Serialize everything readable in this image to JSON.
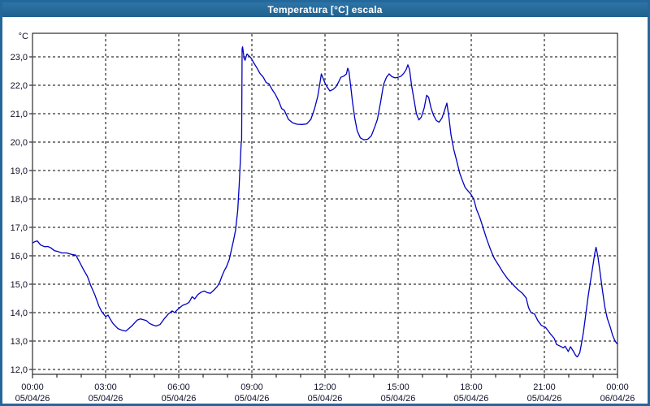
{
  "window": {
    "title": "Temperatura [°C] escala"
  },
  "colors": {
    "titlebar": "#24689b",
    "window_border": "#24689b",
    "curve": "#0000bf",
    "grid": "#000000",
    "axis": "#000000",
    "label_text": "#10102a",
    "plot_background": "#ffffff"
  },
  "chart_data": {
    "type": "line",
    "title": "Temperatura [°C] escala",
    "unit_label": "°C",
    "grid": "dashed",
    "legend_position": "none",
    "x_axis": {
      "hours_span": 24,
      "tick_step_hours": 3,
      "minor_tick_step_hours": 1,
      "ticks": [
        {
          "hour": 0,
          "time": "00:00",
          "date": "05/04/26"
        },
        {
          "hour": 3,
          "time": "03:00",
          "date": "05/04/26"
        },
        {
          "hour": 6,
          "time": "06:00",
          "date": "05/04/26"
        },
        {
          "hour": 9,
          "time": "09:00",
          "date": "05/04/26"
        },
        {
          "hour": 12,
          "time": "12:00",
          "date": "05/04/26"
        },
        {
          "hour": 15,
          "time": "15:00",
          "date": "05/04/26"
        },
        {
          "hour": 18,
          "time": "18:00",
          "date": "05/04/26"
        },
        {
          "hour": 21,
          "time": "21:00",
          "date": "05/04/26"
        },
        {
          "hour": 24,
          "time": "00:00",
          "date": "06/04/26"
        }
      ]
    },
    "y_axis": {
      "ylim": [
        11.8,
        23.8
      ],
      "gridline_step": 1.0,
      "ticks": [
        {
          "value": 23,
          "label": "23,0"
        },
        {
          "value": 22,
          "label": "22,0"
        },
        {
          "value": 21,
          "label": "21,0"
        },
        {
          "value": 20,
          "label": "20,0"
        },
        {
          "value": 19,
          "label": "19,0"
        },
        {
          "value": 18,
          "label": "18,0"
        },
        {
          "value": 17,
          "label": "17,0"
        },
        {
          "value": 16,
          "label": "16,0"
        },
        {
          "value": 15,
          "label": "15,0"
        },
        {
          "value": 14,
          "label": "14,0"
        },
        {
          "value": 13,
          "label": "13,0"
        },
        {
          "value": 12,
          "label": "12,0"
        }
      ]
    },
    "series": [
      {
        "name": "Temperatura",
        "color": "#0000bf",
        "points": [
          [
            0.0,
            16.45
          ],
          [
            0.1,
            16.5
          ],
          [
            0.2,
            16.52
          ],
          [
            0.33,
            16.38
          ],
          [
            0.5,
            16.32
          ],
          [
            0.63,
            16.33
          ],
          [
            0.75,
            16.28
          ],
          [
            0.9,
            16.18
          ],
          [
            1.05,
            16.15
          ],
          [
            1.2,
            16.1
          ],
          [
            1.4,
            16.1
          ],
          [
            1.6,
            16.05
          ],
          [
            1.78,
            16.02
          ],
          [
            1.95,
            15.75
          ],
          [
            2.1,
            15.5
          ],
          [
            2.25,
            15.28
          ],
          [
            2.4,
            14.93
          ],
          [
            2.56,
            14.62
          ],
          [
            2.72,
            14.24
          ],
          [
            2.83,
            14.05
          ],
          [
            3.0,
            13.86
          ],
          [
            3.1,
            13.91
          ],
          [
            3.17,
            13.8
          ],
          [
            3.3,
            13.62
          ],
          [
            3.5,
            13.44
          ],
          [
            3.67,
            13.38
          ],
          [
            3.83,
            13.35
          ],
          [
            3.95,
            13.44
          ],
          [
            4.07,
            13.53
          ],
          [
            4.2,
            13.65
          ],
          [
            4.3,
            13.74
          ],
          [
            4.43,
            13.78
          ],
          [
            4.55,
            13.75
          ],
          [
            4.67,
            13.72
          ],
          [
            4.8,
            13.62
          ],
          [
            4.95,
            13.56
          ],
          [
            5.07,
            13.53
          ],
          [
            5.23,
            13.58
          ],
          [
            5.4,
            13.78
          ],
          [
            5.57,
            13.95
          ],
          [
            5.73,
            14.06
          ],
          [
            5.83,
            14.0
          ],
          [
            6.0,
            14.15
          ],
          [
            6.17,
            14.26
          ],
          [
            6.3,
            14.3
          ],
          [
            6.42,
            14.36
          ],
          [
            6.55,
            14.56
          ],
          [
            6.65,
            14.48
          ],
          [
            6.78,
            14.63
          ],
          [
            6.92,
            14.72
          ],
          [
            7.05,
            14.76
          ],
          [
            7.18,
            14.7
          ],
          [
            7.3,
            14.68
          ],
          [
            7.45,
            14.8
          ],
          [
            7.58,
            14.92
          ],
          [
            7.68,
            15.07
          ],
          [
            7.78,
            15.3
          ],
          [
            7.87,
            15.48
          ],
          [
            7.95,
            15.6
          ],
          [
            8.07,
            15.86
          ],
          [
            8.17,
            16.25
          ],
          [
            8.25,
            16.55
          ],
          [
            8.33,
            16.9
          ],
          [
            8.42,
            17.6
          ],
          [
            8.48,
            18.5
          ],
          [
            8.53,
            19.4
          ],
          [
            8.56,
            19.95
          ],
          [
            8.58,
            20.05
          ],
          [
            8.6,
            23.28
          ],
          [
            8.62,
            23.35
          ],
          [
            8.68,
            22.95
          ],
          [
            8.72,
            22.88
          ],
          [
            8.8,
            23.1
          ],
          [
            8.88,
            23.03
          ],
          [
            8.95,
            22.98
          ],
          [
            9.07,
            22.8
          ],
          [
            9.2,
            22.62
          ],
          [
            9.33,
            22.42
          ],
          [
            9.47,
            22.28
          ],
          [
            9.58,
            22.1
          ],
          [
            9.7,
            22.05
          ],
          [
            9.83,
            21.85
          ],
          [
            9.95,
            21.7
          ],
          [
            10.1,
            21.45
          ],
          [
            10.22,
            21.18
          ],
          [
            10.33,
            21.12
          ],
          [
            10.5,
            20.8
          ],
          [
            10.67,
            20.68
          ],
          [
            10.85,
            20.63
          ],
          [
            11.05,
            20.62
          ],
          [
            11.25,
            20.64
          ],
          [
            11.42,
            20.8
          ],
          [
            11.57,
            21.17
          ],
          [
            11.7,
            21.6
          ],
          [
            11.8,
            22.12
          ],
          [
            11.85,
            22.4
          ],
          [
            11.92,
            22.25
          ],
          [
            12.0,
            22.08
          ],
          [
            12.08,
            21.95
          ],
          [
            12.2,
            21.8
          ],
          [
            12.33,
            21.85
          ],
          [
            12.45,
            21.95
          ],
          [
            12.55,
            22.1
          ],
          [
            12.65,
            22.28
          ],
          [
            12.77,
            22.32
          ],
          [
            12.88,
            22.4
          ],
          [
            12.93,
            22.6
          ],
          [
            12.98,
            22.5
          ],
          [
            13.05,
            22.0
          ],
          [
            13.13,
            21.4
          ],
          [
            13.22,
            20.85
          ],
          [
            13.32,
            20.4
          ],
          [
            13.45,
            20.15
          ],
          [
            13.6,
            20.08
          ],
          [
            13.75,
            20.1
          ],
          [
            13.9,
            20.22
          ],
          [
            14.05,
            20.55
          ],
          [
            14.15,
            20.8
          ],
          [
            14.28,
            21.4
          ],
          [
            14.4,
            22.02
          ],
          [
            14.52,
            22.28
          ],
          [
            14.63,
            22.4
          ],
          [
            14.75,
            22.3
          ],
          [
            14.88,
            22.26
          ],
          [
            15.0,
            22.28
          ],
          [
            15.12,
            22.32
          ],
          [
            15.23,
            22.42
          ],
          [
            15.33,
            22.55
          ],
          [
            15.4,
            22.72
          ],
          [
            15.47,
            22.55
          ],
          [
            15.55,
            22.0
          ],
          [
            15.65,
            21.5
          ],
          [
            15.75,
            21.0
          ],
          [
            15.85,
            20.78
          ],
          [
            15.95,
            20.88
          ],
          [
            16.07,
            21.2
          ],
          [
            16.17,
            21.65
          ],
          [
            16.25,
            21.58
          ],
          [
            16.35,
            21.2
          ],
          [
            16.45,
            20.95
          ],
          [
            16.57,
            20.76
          ],
          [
            16.68,
            20.7
          ],
          [
            16.8,
            20.85
          ],
          [
            16.9,
            21.1
          ],
          [
            17.0,
            21.37
          ],
          [
            17.08,
            20.9
          ],
          [
            17.17,
            20.25
          ],
          [
            17.28,
            19.75
          ],
          [
            17.4,
            19.35
          ],
          [
            17.53,
            18.9
          ],
          [
            17.65,
            18.62
          ],
          [
            17.75,
            18.4
          ],
          [
            17.87,
            18.28
          ],
          [
            18.0,
            18.15
          ],
          [
            18.1,
            18.0
          ],
          [
            18.22,
            17.62
          ],
          [
            18.35,
            17.35
          ],
          [
            18.5,
            16.95
          ],
          [
            18.65,
            16.55
          ],
          [
            18.8,
            16.2
          ],
          [
            18.95,
            15.9
          ],
          [
            19.1,
            15.7
          ],
          [
            19.3,
            15.42
          ],
          [
            19.5,
            15.18
          ],
          [
            19.7,
            15.0
          ],
          [
            19.9,
            14.82
          ],
          [
            20.1,
            14.68
          ],
          [
            20.25,
            14.52
          ],
          [
            20.35,
            14.18
          ],
          [
            20.45,
            14.0
          ],
          [
            20.6,
            13.95
          ],
          [
            20.73,
            13.72
          ],
          [
            20.88,
            13.55
          ],
          [
            21.05,
            13.48
          ],
          [
            21.25,
            13.25
          ],
          [
            21.4,
            13.1
          ],
          [
            21.5,
            12.88
          ],
          [
            21.65,
            12.82
          ],
          [
            21.78,
            12.76
          ],
          [
            21.85,
            12.82
          ],
          [
            21.92,
            12.72
          ],
          [
            21.98,
            12.63
          ],
          [
            22.07,
            12.8
          ],
          [
            22.17,
            12.67
          ],
          [
            22.28,
            12.5
          ],
          [
            22.35,
            12.44
          ],
          [
            22.45,
            12.58
          ],
          [
            22.52,
            12.9
          ],
          [
            22.6,
            13.3
          ],
          [
            22.7,
            13.95
          ],
          [
            22.8,
            14.6
          ],
          [
            22.9,
            15.15
          ],
          [
            23.0,
            15.7
          ],
          [
            23.07,
            16.1
          ],
          [
            23.12,
            16.3
          ],
          [
            23.2,
            15.95
          ],
          [
            23.28,
            15.45
          ],
          [
            23.38,
            14.8
          ],
          [
            23.48,
            14.2
          ],
          [
            23.58,
            13.8
          ],
          [
            23.7,
            13.5
          ],
          [
            23.8,
            13.2
          ],
          [
            23.9,
            13.0
          ],
          [
            23.97,
            12.92
          ],
          [
            24.0,
            12.9
          ]
        ]
      }
    ]
  }
}
